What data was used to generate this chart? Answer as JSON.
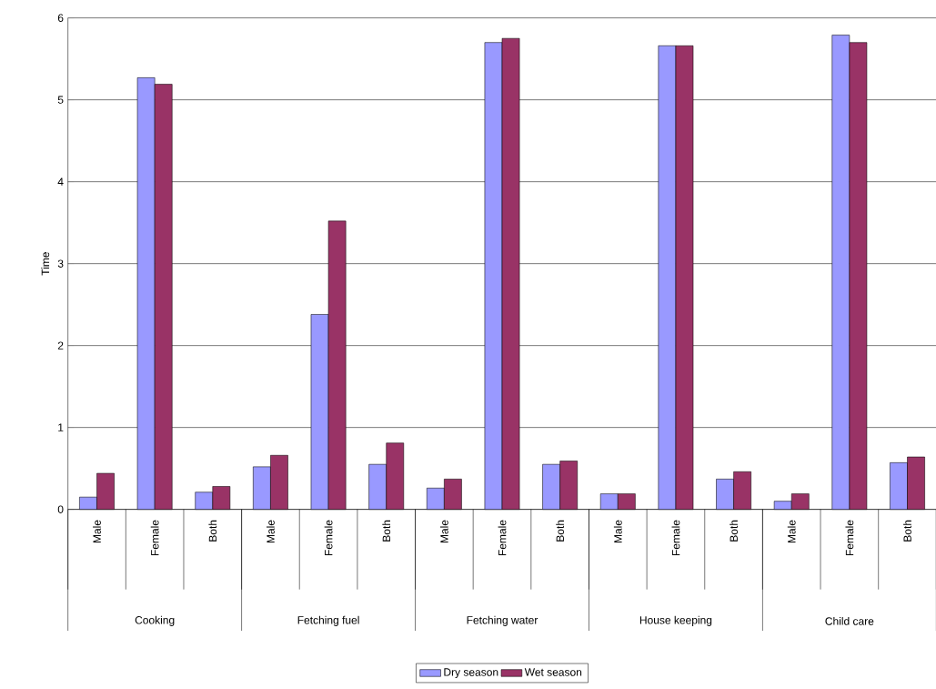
{
  "chart_data": {
    "type": "bar",
    "ylabel": "Time",
    "categories": [
      "Male",
      "Female",
      "Both",
      "Male",
      "Female",
      "Both",
      "Male",
      "Female",
      "Both",
      "Male",
      "Female",
      "Both",
      "Male",
      "Female",
      "Both"
    ],
    "annotations": [
      "Cooking",
      "Fetching fuel",
      "Fetching water",
      "House keeping",
      "Child care"
    ],
    "series": [
      {
        "name": "Dry season",
        "color": "#9999ff",
        "values": [
          0.15,
          5.27,
          0.21,
          0.52,
          2.38,
          0.55,
          0.26,
          5.7,
          0.55,
          0.19,
          5.66,
          0.37,
          0.1,
          5.79,
          0.57
        ]
      },
      {
        "name": "Wet season",
        "color": "#993366",
        "values": [
          0.44,
          5.19,
          0.28,
          0.66,
          3.52,
          0.81,
          0.37,
          5.75,
          0.59,
          0.19,
          5.66,
          0.46,
          0.19,
          5.7,
          0.64
        ]
      }
    ],
    "ylim": [
      0,
      6
    ],
    "yticks": [
      0,
      1,
      2,
      3,
      4,
      5,
      6
    ],
    "grid": "y",
    "legend": "bottom"
  }
}
